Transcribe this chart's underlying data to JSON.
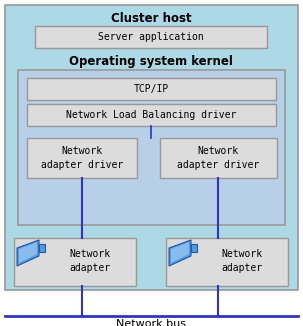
{
  "bg_outer": "#add8e6",
  "bg_inner": "#b8cfe8",
  "box_fill": "#dcdcdc",
  "box_edge": "#999999",
  "dark_blue": "#1111aa",
  "line_blue": "#3333bb",
  "icon_blue": "#5599dd",
  "icon_dark": "#2255aa",
  "white": "#ffffff",
  "title_cluster": "Cluster host",
  "title_os": "Operating system kernel",
  "label_server": "Server application",
  "label_tcp": "TCP/IP",
  "label_nlb": "Network Load Balancing driver",
  "label_nad1": "Network\nadapter driver",
  "label_nad2": "Network\nadapter driver",
  "label_na1": "Network\nadapter",
  "label_na2": "Network\nadapter",
  "label_bus": "Network bus",
  "fs_title": 8.5,
  "fs_label": 7,
  "fs_bus": 8
}
